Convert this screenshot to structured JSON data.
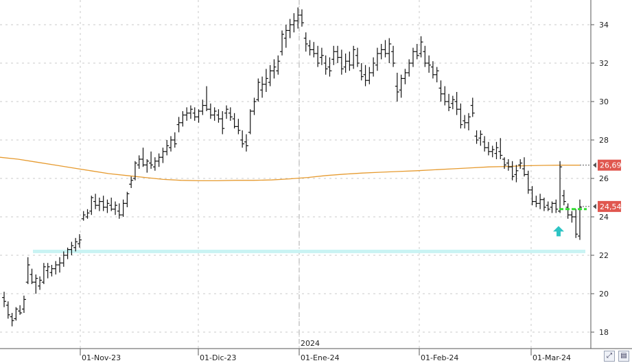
{
  "chart_data": {
    "type": "ohlc",
    "y_axis": {
      "position": "right",
      "range": [
        17.5,
        35.3
      ],
      "ticks": [
        18,
        20,
        22,
        24,
        26,
        28,
        30,
        32,
        34
      ],
      "tick_labels": [
        "18",
        "20",
        "22",
        "24",
        "26",
        "28",
        "30",
        "32",
        "34"
      ]
    },
    "x_axis": {
      "tick_labels": [
        "01-Nov-23",
        "01-Dic-23",
        "01-Ene-24",
        "01-Feb-24",
        "01-Mar-24"
      ],
      "year_marker": "2024"
    },
    "grid": true,
    "bars": [
      {
        "o": 19.8,
        "h": 20.1,
        "l": 19.3,
        "c": 19.6
      },
      {
        "o": 19.4,
        "h": 19.6,
        "l": 18.7,
        "c": 18.9
      },
      {
        "o": 18.8,
        "h": 19.0,
        "l": 18.3,
        "c": 18.6
      },
      {
        "o": 18.7,
        "h": 19.3,
        "l": 18.6,
        "c": 19.2
      },
      {
        "o": 19.1,
        "h": 19.4,
        "l": 18.9,
        "c": 19.0
      },
      {
        "o": 19.2,
        "h": 19.9,
        "l": 19.0,
        "c": 19.7
      },
      {
        "o": 20.6,
        "h": 21.9,
        "l": 20.5,
        "c": 21.5
      },
      {
        "o": 21.0,
        "h": 21.3,
        "l": 20.5,
        "c": 20.6
      },
      {
        "o": 20.6,
        "h": 21.0,
        "l": 20.0,
        "c": 20.8
      },
      {
        "o": 20.4,
        "h": 20.9,
        "l": 20.2,
        "c": 20.7
      },
      {
        "o": 20.6,
        "h": 21.6,
        "l": 20.5,
        "c": 21.4
      },
      {
        "o": 21.2,
        "h": 21.6,
        "l": 20.8,
        "c": 21.4
      },
      {
        "o": 21.1,
        "h": 21.5,
        "l": 20.9,
        "c": 21.3
      },
      {
        "o": 21.3,
        "h": 21.7,
        "l": 21.0,
        "c": 21.5
      },
      {
        "o": 21.5,
        "h": 21.9,
        "l": 21.1,
        "c": 21.6
      },
      {
        "o": 21.6,
        "h": 22.2,
        "l": 21.4,
        "c": 22.0
      },
      {
        "o": 22.0,
        "h": 22.4,
        "l": 21.8,
        "c": 22.3
      },
      {
        "o": 22.3,
        "h": 22.7,
        "l": 22.0,
        "c": 22.5
      },
      {
        "o": 22.4,
        "h": 22.9,
        "l": 22.2,
        "c": 22.7
      },
      {
        "o": 22.6,
        "h": 23.1,
        "l": 22.4,
        "c": 22.8
      },
      {
        "o": 23.9,
        "h": 24.3,
        "l": 23.8,
        "c": 24.1
      },
      {
        "o": 24.0,
        "h": 24.4,
        "l": 23.9,
        "c": 24.2
      },
      {
        "o": 24.3,
        "h": 25.1,
        "l": 24.1,
        "c": 25.0
      },
      {
        "o": 24.8,
        "h": 25.2,
        "l": 24.4,
        "c": 24.6
      },
      {
        "o": 24.6,
        "h": 25.0,
        "l": 24.3,
        "c": 24.8
      },
      {
        "o": 24.8,
        "h": 25.1,
        "l": 24.3,
        "c": 24.5
      },
      {
        "o": 24.5,
        "h": 24.9,
        "l": 24.2,
        "c": 24.7
      },
      {
        "o": 24.6,
        "h": 25.0,
        "l": 24.3,
        "c": 24.4
      },
      {
        "o": 24.4,
        "h": 24.8,
        "l": 24.1,
        "c": 24.6
      },
      {
        "o": 24.3,
        "h": 24.7,
        "l": 23.9,
        "c": 24.1
      },
      {
        "o": 24.1,
        "h": 24.9,
        "l": 24.0,
        "c": 24.7
      },
      {
        "o": 24.7,
        "h": 25.3,
        "l": 24.5,
        "c": 25.2
      },
      {
        "o": 25.7,
        "h": 26.1,
        "l": 25.5,
        "c": 25.9
      },
      {
        "o": 26.0,
        "h": 26.9,
        "l": 25.9,
        "c": 26.8
      },
      {
        "o": 26.7,
        "h": 27.2,
        "l": 26.5,
        "c": 27.0
      },
      {
        "o": 27.0,
        "h": 27.6,
        "l": 26.6,
        "c": 26.7
      },
      {
        "o": 26.7,
        "h": 27.0,
        "l": 26.3,
        "c": 26.9
      },
      {
        "o": 26.8,
        "h": 27.4,
        "l": 26.5,
        "c": 26.7
      },
      {
        "o": 26.6,
        "h": 27.1,
        "l": 26.4,
        "c": 26.9
      },
      {
        "o": 26.9,
        "h": 27.3,
        "l": 26.6,
        "c": 27.1
      },
      {
        "o": 27.1,
        "h": 27.6,
        "l": 26.8,
        "c": 27.4
      },
      {
        "o": 27.4,
        "h": 28.0,
        "l": 27.2,
        "c": 27.7
      },
      {
        "o": 27.6,
        "h": 28.2,
        "l": 27.4,
        "c": 28.0
      },
      {
        "o": 28.0,
        "h": 28.4,
        "l": 27.6,
        "c": 27.8
      },
      {
        "o": 28.8,
        "h": 29.2,
        "l": 28.4,
        "c": 28.9
      },
      {
        "o": 28.9,
        "h": 29.5,
        "l": 28.7,
        "c": 29.3
      },
      {
        "o": 29.3,
        "h": 29.7,
        "l": 29.0,
        "c": 29.4
      },
      {
        "o": 29.4,
        "h": 29.8,
        "l": 29.1,
        "c": 29.6
      },
      {
        "o": 29.4,
        "h": 29.7,
        "l": 29.0,
        "c": 29.2
      },
      {
        "o": 29.2,
        "h": 29.6,
        "l": 28.9,
        "c": 29.5
      },
      {
        "o": 29.5,
        "h": 30.1,
        "l": 29.3,
        "c": 29.8
      },
      {
        "o": 29.8,
        "h": 30.8,
        "l": 29.5,
        "c": 29.6
      },
      {
        "o": 29.6,
        "h": 29.9,
        "l": 29.1,
        "c": 29.3
      },
      {
        "o": 29.3,
        "h": 29.7,
        "l": 29.0,
        "c": 29.5
      },
      {
        "o": 29.3,
        "h": 29.6,
        "l": 28.9,
        "c": 29.1
      },
      {
        "o": 29.1,
        "h": 29.5,
        "l": 28.3,
        "c": 28.6
      },
      {
        "o": 29.4,
        "h": 29.8,
        "l": 29.1,
        "c": 29.6
      },
      {
        "o": 29.4,
        "h": 29.7,
        "l": 29.0,
        "c": 29.2
      },
      {
        "o": 29.1,
        "h": 29.4,
        "l": 28.6,
        "c": 28.7
      },
      {
        "o": 28.7,
        "h": 29.1,
        "l": 28.3,
        "c": 28.5
      },
      {
        "o": 28.0,
        "h": 28.5,
        "l": 27.6,
        "c": 27.8
      },
      {
        "o": 27.9,
        "h": 28.3,
        "l": 27.4,
        "c": 27.7
      },
      {
        "o": 28.4,
        "h": 29.6,
        "l": 28.3,
        "c": 29.5
      },
      {
        "o": 29.5,
        "h": 30.2,
        "l": 29.3,
        "c": 30.0
      },
      {
        "o": 30.1,
        "h": 31.2,
        "l": 30.0,
        "c": 31.0
      },
      {
        "o": 30.6,
        "h": 31.3,
        "l": 30.2,
        "c": 30.9
      },
      {
        "o": 30.9,
        "h": 31.7,
        "l": 30.5,
        "c": 31.2
      },
      {
        "o": 31.0,
        "h": 31.9,
        "l": 30.8,
        "c": 31.6
      },
      {
        "o": 31.6,
        "h": 32.2,
        "l": 31.2,
        "c": 31.8
      },
      {
        "o": 31.6,
        "h": 32.4,
        "l": 31.4,
        "c": 32.1
      },
      {
        "o": 32.6,
        "h": 33.7,
        "l": 32.4,
        "c": 33.5
      },
      {
        "o": 33.3,
        "h": 34.0,
        "l": 32.8,
        "c": 33.7
      },
      {
        "o": 33.7,
        "h": 34.3,
        "l": 33.3,
        "c": 34.0
      },
      {
        "o": 34.0,
        "h": 34.6,
        "l": 33.6,
        "c": 34.2
      },
      {
        "o": 34.2,
        "h": 34.9,
        "l": 33.8,
        "c": 34.5
      },
      {
        "o": 34.5,
        "h": 34.8,
        "l": 33.9,
        "c": 34.1
      },
      {
        "o": 33.3,
        "h": 33.6,
        "l": 32.6,
        "c": 33.0
      },
      {
        "o": 32.9,
        "h": 33.2,
        "l": 32.4,
        "c": 32.7
      },
      {
        "o": 32.7,
        "h": 33.1,
        "l": 32.3,
        "c": 32.5
      },
      {
        "o": 32.5,
        "h": 32.9,
        "l": 31.8,
        "c": 32.0
      },
      {
        "o": 32.3,
        "h": 32.8,
        "l": 31.9,
        "c": 32.4
      },
      {
        "o": 32.0,
        "h": 32.4,
        "l": 31.4,
        "c": 31.7
      },
      {
        "o": 31.8,
        "h": 32.3,
        "l": 31.3,
        "c": 31.6
      },
      {
        "o": 32.2,
        "h": 32.9,
        "l": 31.9,
        "c": 32.6
      },
      {
        "o": 32.6,
        "h": 32.9,
        "l": 32.0,
        "c": 32.3
      },
      {
        "o": 32.3,
        "h": 32.7,
        "l": 31.4,
        "c": 31.7
      },
      {
        "o": 31.8,
        "h": 32.5,
        "l": 31.5,
        "c": 32.1
      },
      {
        "o": 32.1,
        "h": 32.6,
        "l": 31.6,
        "c": 31.9
      },
      {
        "o": 31.9,
        "h": 32.9,
        "l": 31.7,
        "c": 32.7
      },
      {
        "o": 32.4,
        "h": 32.8,
        "l": 31.8,
        "c": 32.0
      },
      {
        "o": 31.6,
        "h": 32.0,
        "l": 31.1,
        "c": 31.3
      },
      {
        "o": 31.4,
        "h": 31.9,
        "l": 30.8,
        "c": 31.1
      },
      {
        "o": 31.1,
        "h": 31.8,
        "l": 30.9,
        "c": 31.5
      },
      {
        "o": 31.5,
        "h": 32.3,
        "l": 31.3,
        "c": 32.0
      },
      {
        "o": 31.9,
        "h": 32.8,
        "l": 31.6,
        "c": 32.5
      },
      {
        "o": 32.5,
        "h": 33.0,
        "l": 32.2,
        "c": 32.7
      },
      {
        "o": 32.7,
        "h": 33.2,
        "l": 32.3,
        "c": 32.5
      },
      {
        "o": 32.5,
        "h": 33.3,
        "l": 32.0,
        "c": 33.0
      },
      {
        "o": 32.6,
        "h": 32.9,
        "l": 31.8,
        "c": 32.0
      },
      {
        "o": 30.8,
        "h": 31.5,
        "l": 30.0,
        "c": 30.5
      },
      {
        "o": 30.6,
        "h": 31.4,
        "l": 30.2,
        "c": 31.2
      },
      {
        "o": 31.2,
        "h": 31.7,
        "l": 30.9,
        "c": 31.5
      },
      {
        "o": 31.5,
        "h": 32.2,
        "l": 31.3,
        "c": 32.0
      },
      {
        "o": 32.0,
        "h": 32.8,
        "l": 31.8,
        "c": 32.6
      },
      {
        "o": 32.6,
        "h": 33.0,
        "l": 32.2,
        "c": 32.4
      },
      {
        "o": 32.5,
        "h": 33.4,
        "l": 32.3,
        "c": 33.1
      },
      {
        "o": 32.6,
        "h": 32.9,
        "l": 31.8,
        "c": 32.0
      },
      {
        "o": 32.0,
        "h": 32.4,
        "l": 31.5,
        "c": 31.9
      },
      {
        "o": 31.8,
        "h": 32.1,
        "l": 31.2,
        "c": 31.4
      },
      {
        "o": 31.4,
        "h": 31.8,
        "l": 31.0,
        "c": 31.6
      },
      {
        "o": 30.7,
        "h": 31.1,
        "l": 30.0,
        "c": 30.4
      },
      {
        "o": 30.4,
        "h": 30.8,
        "l": 29.8,
        "c": 30.0
      },
      {
        "o": 30.0,
        "h": 30.4,
        "l": 29.5,
        "c": 29.7
      },
      {
        "o": 29.9,
        "h": 30.3,
        "l": 29.6,
        "c": 30.1
      },
      {
        "o": 30.0,
        "h": 30.5,
        "l": 29.3,
        "c": 29.6
      },
      {
        "o": 29.6,
        "h": 29.9,
        "l": 28.6,
        "c": 28.8
      },
      {
        "o": 29.0,
        "h": 29.3,
        "l": 28.6,
        "c": 28.9
      },
      {
        "o": 28.9,
        "h": 29.4,
        "l": 28.5,
        "c": 29.2
      },
      {
        "o": 29.8,
        "h": 30.2,
        "l": 29.2,
        "c": 29.4
      },
      {
        "o": 28.2,
        "h": 28.5,
        "l": 27.8,
        "c": 28.0
      },
      {
        "o": 28.1,
        "h": 28.5,
        "l": 27.7,
        "c": 28.3
      },
      {
        "o": 27.9,
        "h": 28.2,
        "l": 27.4,
        "c": 27.6
      },
      {
        "o": 27.6,
        "h": 27.9,
        "l": 27.2,
        "c": 27.4
      },
      {
        "o": 27.4,
        "h": 27.7,
        "l": 27.1,
        "c": 27.5
      },
      {
        "o": 27.3,
        "h": 27.9,
        "l": 27.0,
        "c": 27.6
      },
      {
        "o": 27.4,
        "h": 28.1,
        "l": 27.0,
        "c": 27.2
      },
      {
        "o": 27.0,
        "h": 27.1,
        "l": 26.5,
        "c": 26.7
      },
      {
        "o": 26.8,
        "h": 27.0,
        "l": 26.4,
        "c": 26.6
      },
      {
        "o": 26.6,
        "h": 26.9,
        "l": 25.9,
        "c": 26.1
      },
      {
        "o": 26.2,
        "h": 26.7,
        "l": 25.8,
        "c": 26.4
      },
      {
        "o": 26.7,
        "h": 27.0,
        "l": 26.5,
        "c": 26.8
      },
      {
        "o": 26.5,
        "h": 27.1,
        "l": 26.1,
        "c": 26.2
      },
      {
        "o": 26.2,
        "h": 26.4,
        "l": 25.2,
        "c": 25.4
      },
      {
        "o": 25.4,
        "h": 25.6,
        "l": 24.6,
        "c": 24.8
      },
      {
        "o": 24.8,
        "h": 25.1,
        "l": 24.5,
        "c": 24.7
      },
      {
        "o": 24.7,
        "h": 25.2,
        "l": 24.4,
        "c": 24.9
      },
      {
        "o": 24.9,
        "h": 25.0,
        "l": 24.3,
        "c": 24.5
      },
      {
        "o": 24.6,
        "h": 24.8,
        "l": 24.3,
        "c": 24.4
      },
      {
        "o": 24.5,
        "h": 24.8,
        "l": 24.2,
        "c": 24.7
      },
      {
        "o": 24.7,
        "h": 24.9,
        "l": 24.2,
        "c": 24.4
      },
      {
        "o": 24.3,
        "h": 26.9,
        "l": 24.2,
        "c": 26.6
      },
      {
        "o": 25.1,
        "h": 25.4,
        "l": 24.6,
        "c": 24.8
      },
      {
        "o": 24.5,
        "h": 24.7,
        "l": 23.9,
        "c": 24.1
      },
      {
        "o": 24.1,
        "h": 24.3,
        "l": 23.7,
        "c": 24.0
      },
      {
        "o": 24.0,
        "h": 24.4,
        "l": 22.9,
        "c": 23.1
      },
      {
        "o": 23.0,
        "h": 24.9,
        "l": 22.8,
        "c": 24.5
      }
    ],
    "moving_average": {
      "color": "#e69a2e",
      "values": [
        27.1,
        27.0,
        26.85,
        26.7,
        26.55,
        26.4,
        26.25,
        26.15,
        26.05,
        25.95,
        25.9,
        25.88,
        25.88,
        25.9,
        25.9,
        25.92,
        25.98,
        26.05,
        26.15,
        26.22,
        26.28,
        26.32,
        26.36,
        26.4,
        26.45,
        26.5,
        26.55,
        26.6,
        26.62,
        26.66,
        26.68,
        26.69,
        26.69
      ]
    },
    "support_level": {
      "value": 22.2,
      "color": "#c9f3f3"
    },
    "signal_level": {
      "value": 24.4,
      "color": "#33dd33"
    },
    "arrow_marker": {
      "value": 23.2,
      "color": "#2ec4c4",
      "direction": "up"
    },
    "price_tags": [
      {
        "label": "26,69",
        "value": 26.69,
        "color": "#e0574f"
      },
      {
        "label": "24,54",
        "value": 24.54,
        "color": "#e0574f"
      }
    ]
  }
}
